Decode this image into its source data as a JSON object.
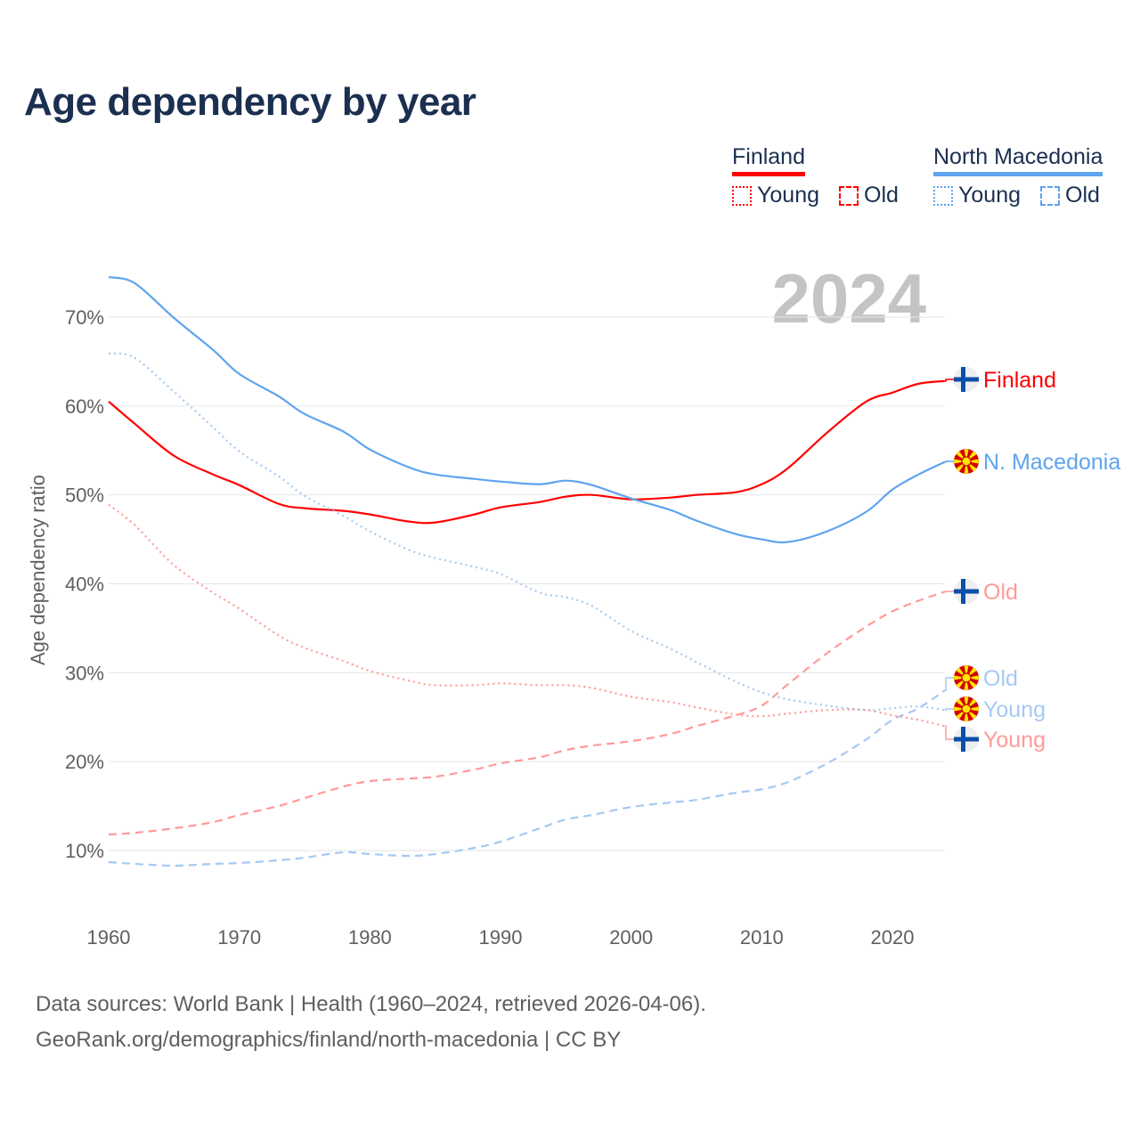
{
  "title": "Age dependency by year",
  "legend": {
    "groups": [
      {
        "country": "Finland",
        "color": "#ff0000",
        "light": "#ff9a9a",
        "items": [
          "Young",
          "Old"
        ]
      },
      {
        "country": "North Macedonia",
        "color": "#5ea4ee",
        "light": "#a6c9f2",
        "items": [
          "Young",
          "Old"
        ]
      }
    ]
  },
  "year_watermark": "2024",
  "footer": {
    "line1": "Data sources: World Bank | Health (1960–2024, retrieved 2026-04-06).",
    "line2": "GeoRank.org/demographics/finland/north-macedonia | CC BY"
  },
  "chart_data": {
    "type": "line",
    "title": "Age dependency by year",
    "xlabel": "",
    "ylabel": "Age dependency ratio",
    "xlim": [
      1960,
      2024
    ],
    "ylim": [
      4,
      76
    ],
    "xticks": [
      1960,
      1970,
      1980,
      1990,
      2000,
      2010,
      2020
    ],
    "yticks": [
      10,
      20,
      30,
      40,
      50,
      60,
      70
    ],
    "ytick_labels": [
      "10%",
      "20%",
      "30%",
      "40%",
      "50%",
      "60%",
      "70%"
    ],
    "grid": true,
    "x": [
      1960,
      1962,
      1965,
      1968,
      1970,
      1973,
      1975,
      1978,
      1980,
      1983,
      1985,
      1988,
      1990,
      1993,
      1995,
      1997,
      2000,
      2003,
      2005,
      2008,
      2010,
      2012,
      2015,
      2018,
      2020,
      2022,
      2024
    ],
    "series": [
      {
        "name": "Finland",
        "label": "Finland",
        "country": "Finland",
        "kind": "total",
        "color": "#ff0000",
        "dash": "",
        "values": [
          60.5,
          58.0,
          54.4,
          52.3,
          51.1,
          49.0,
          48.5,
          48.2,
          47.8,
          47.0,
          46.9,
          47.8,
          48.6,
          49.2,
          49.8,
          50.0,
          49.5,
          49.7,
          50.0,
          50.3,
          51.2,
          53.0,
          57.0,
          60.5,
          61.5,
          62.5,
          62.8
        ]
      },
      {
        "name": "North Macedonia",
        "label": "N. Macedonia",
        "country": "North Macedonia",
        "kind": "total",
        "color": "#5ea4ee",
        "dash": "",
        "values": [
          74.5,
          73.8,
          69.9,
          66.3,
          63.6,
          61.1,
          59.1,
          57.1,
          55.1,
          53.1,
          52.3,
          51.8,
          51.5,
          51.2,
          51.6,
          51.1,
          49.6,
          48.3,
          47.1,
          45.6,
          45.0,
          44.7,
          45.9,
          48.1,
          50.6,
          52.3,
          53.7
        ]
      },
      {
        "name": "Finland Old",
        "label": "Old",
        "country": "Finland",
        "kind": "old",
        "color": "#ff9a9a",
        "dash": "9 6",
        "values": [
          11.8,
          12.0,
          12.5,
          13.2,
          14.0,
          15.0,
          15.9,
          17.2,
          17.8,
          18.1,
          18.3,
          19.1,
          19.8,
          20.5,
          21.3,
          21.8,
          22.3,
          23.1,
          24.0,
          25.2,
          26.3,
          28.7,
          32.2,
          35.2,
          36.9,
          38.1,
          39.1
        ]
      },
      {
        "name": "North Macedonia Old",
        "label": "Old",
        "country": "North Macedonia",
        "kind": "old",
        "color": "#a6c9f2",
        "dash": "9 6",
        "values": [
          8.7,
          8.5,
          8.3,
          8.5,
          8.6,
          8.9,
          9.2,
          9.8,
          9.6,
          9.4,
          9.6,
          10.3,
          11.0,
          12.5,
          13.5,
          14.0,
          14.9,
          15.4,
          15.7,
          16.5,
          16.9,
          17.7,
          19.8,
          22.5,
          24.7,
          26.0,
          28.0
        ]
      },
      {
        "name": "North Macedonia Young",
        "label": "Young",
        "country": "North Macedonia",
        "kind": "young",
        "color": "#a6c9f2",
        "dash": "2 4",
        "values": [
          65.9,
          65.4,
          61.6,
          57.6,
          54.9,
          52.1,
          49.9,
          47.6,
          45.9,
          43.8,
          42.9,
          41.9,
          41.1,
          39.0,
          38.5,
          37.5,
          34.7,
          32.7,
          31.2,
          29.0,
          27.8,
          27.0,
          26.3,
          25.8,
          26.0,
          26.2,
          25.8
        ]
      },
      {
        "name": "Finland Young",
        "label": "Young",
        "country": "Finland",
        "kind": "young",
        "color": "#ff9a9a",
        "dash": "2 4",
        "values": [
          48.9,
          46.6,
          42.1,
          39.0,
          37.2,
          34.2,
          32.8,
          31.3,
          30.2,
          29.1,
          28.6,
          28.6,
          28.8,
          28.6,
          28.6,
          28.3,
          27.3,
          26.7,
          26.1,
          25.3,
          25.1,
          25.4,
          25.8,
          25.8,
          25.2,
          24.7,
          24.0
        ]
      }
    ]
  }
}
